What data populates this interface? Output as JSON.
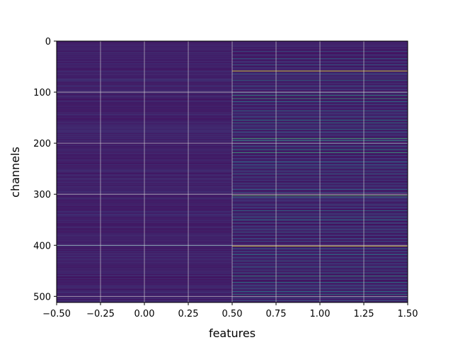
{
  "chart_data": {
    "type": "heatmap",
    "title": "",
    "xlabel": "features",
    "ylabel": "channels",
    "xlim": [
      -0.5,
      1.5
    ],
    "ylim": [
      512,
      0
    ],
    "y_inverted": true,
    "grid": true,
    "colormap": "viridis",
    "x_ticks": [
      -0.5,
      -0.25,
      0.0,
      0.25,
      0.5,
      0.75,
      1.0,
      1.25,
      1.5
    ],
    "x_tick_labels": [
      "−0.50",
      "−0.25",
      "0.00",
      "0.25",
      "0.50",
      "0.75",
      "1.00",
      "1.25",
      "1.50"
    ],
    "y_ticks": [
      0,
      100,
      200,
      300,
      400,
      500
    ],
    "y_tick_labels": [
      "0",
      "100",
      "200",
      "300",
      "400",
      "500"
    ],
    "columns": [
      0,
      1
    ],
    "n_channels": 512,
    "column_0": {
      "baseline": 0.06,
      "rows": [
        [
          15,
          0.12
        ],
        [
          40,
          0.1
        ],
        [
          88,
          0.13
        ],
        [
          130,
          0.11
        ],
        [
          171,
          0.12
        ],
        [
          236,
          0.1
        ],
        [
          290,
          0.13
        ],
        [
          333,
          0.12
        ],
        [
          370,
          0.11
        ],
        [
          400,
          0.32
        ],
        [
          412,
          0.14
        ],
        [
          455,
          0.12
        ],
        [
          498,
          0.13
        ]
      ]
    },
    "column_1": {
      "baseline": 0.05,
      "rows": [
        [
          5,
          0.08
        ],
        [
          10,
          0.15
        ],
        [
          20,
          0.3
        ],
        [
          27,
          0.25
        ],
        [
          34,
          0.4
        ],
        [
          40,
          0.2
        ],
        [
          46,
          0.35
        ],
        [
          52,
          0.25
        ],
        [
          58,
          1.0
        ],
        [
          64,
          0.3
        ],
        [
          70,
          0.2
        ],
        [
          76,
          0.45
        ],
        [
          82,
          0.2
        ],
        [
          88,
          0.3
        ],
        [
          94,
          0.25
        ],
        [
          100,
          0.35
        ],
        [
          106,
          0.55
        ],
        [
          112,
          0.6
        ],
        [
          118,
          0.4
        ],
        [
          124,
          0.3
        ],
        [
          130,
          0.25
        ],
        [
          136,
          0.4
        ],
        [
          142,
          0.2
        ],
        [
          148,
          0.3
        ],
        [
          154,
          0.5
        ],
        [
          160,
          0.45
        ],
        [
          166,
          0.3
        ],
        [
          172,
          0.4
        ],
        [
          178,
          0.35
        ],
        [
          184,
          0.25
        ],
        [
          190,
          0.65
        ],
        [
          194,
          0.55
        ],
        [
          200,
          0.3
        ],
        [
          206,
          0.35
        ],
        [
          212,
          0.5
        ],
        [
          218,
          0.6
        ],
        [
          224,
          0.3
        ],
        [
          230,
          0.25
        ],
        [
          236,
          0.4
        ],
        [
          242,
          0.35
        ],
        [
          248,
          0.45
        ],
        [
          254,
          0.3
        ],
        [
          260,
          0.4
        ],
        [
          266,
          0.3
        ],
        [
          272,
          0.2
        ],
        [
          278,
          0.3
        ],
        [
          284,
          0.25
        ],
        [
          290,
          0.35
        ],
        [
          296,
          0.3
        ],
        [
          302,
          0.75
        ],
        [
          306,
          0.4
        ],
        [
          312,
          0.2
        ],
        [
          320,
          0.3
        ],
        [
          326,
          0.25
        ],
        [
          332,
          0.4
        ],
        [
          338,
          0.3
        ],
        [
          344,
          0.35
        ],
        [
          350,
          0.45
        ],
        [
          356,
          0.3
        ],
        [
          362,
          0.25
        ],
        [
          368,
          0.3
        ],
        [
          374,
          0.35
        ],
        [
          380,
          0.25
        ],
        [
          386,
          0.3
        ],
        [
          392,
          0.3
        ],
        [
          401,
          0.95
        ],
        [
          406,
          0.35
        ],
        [
          412,
          0.3
        ],
        [
          418,
          0.45
        ],
        [
          424,
          0.3
        ],
        [
          430,
          0.35
        ],
        [
          436,
          0.25
        ],
        [
          442,
          0.4
        ],
        [
          448,
          0.3
        ],
        [
          454,
          0.35
        ],
        [
          460,
          0.55
        ],
        [
          466,
          0.3
        ],
        [
          472,
          0.45
        ],
        [
          478,
          0.3
        ],
        [
          484,
          0.35
        ],
        [
          490,
          0.45
        ],
        [
          496,
          0.5
        ],
        [
          502,
          0.35
        ],
        [
          508,
          0.3
        ]
      ]
    }
  }
}
